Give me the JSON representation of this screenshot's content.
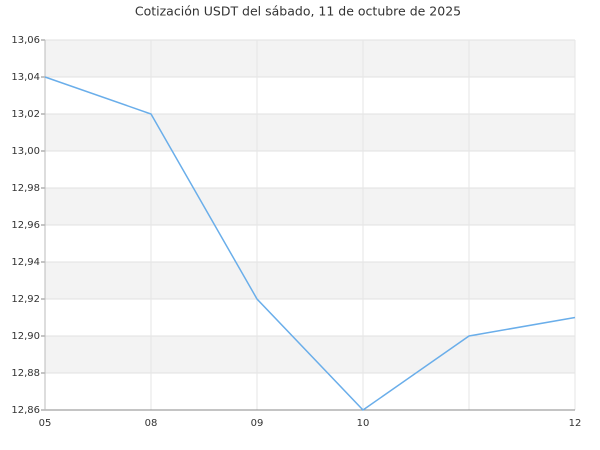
{
  "chart_data": {
    "type": "line",
    "title": "Cotización USDT del sábado, 11 de octubre de 2025",
    "categories": [
      "05",
      "08",
      "09",
      "10",
      null,
      "12"
    ],
    "series": [
      {
        "name": "USDT",
        "color": "#6aaeea",
        "values": [
          13.04,
          13.02,
          12.92,
          12.86,
          12.9,
          12.91
        ]
      }
    ],
    "ylim": [
      12.86,
      13.06
    ],
    "yticks": [
      {
        "value": 12.86,
        "label": "12,86"
      },
      {
        "value": 12.88,
        "label": "12,88"
      },
      {
        "value": 12.9,
        "label": "12,90"
      },
      {
        "value": 12.92,
        "label": "12,92"
      },
      {
        "value": 12.94,
        "label": "12,94"
      },
      {
        "value": 12.96,
        "label": "12,96"
      },
      {
        "value": 12.98,
        "label": "12,98"
      },
      {
        "value": 13.0,
        "label": "13,00"
      },
      {
        "value": 13.02,
        "label": "13,02"
      },
      {
        "value": 13.04,
        "label": "13,04"
      },
      {
        "value": 13.06,
        "label": "13,06"
      }
    ],
    "grid": true,
    "banded": true
  }
}
